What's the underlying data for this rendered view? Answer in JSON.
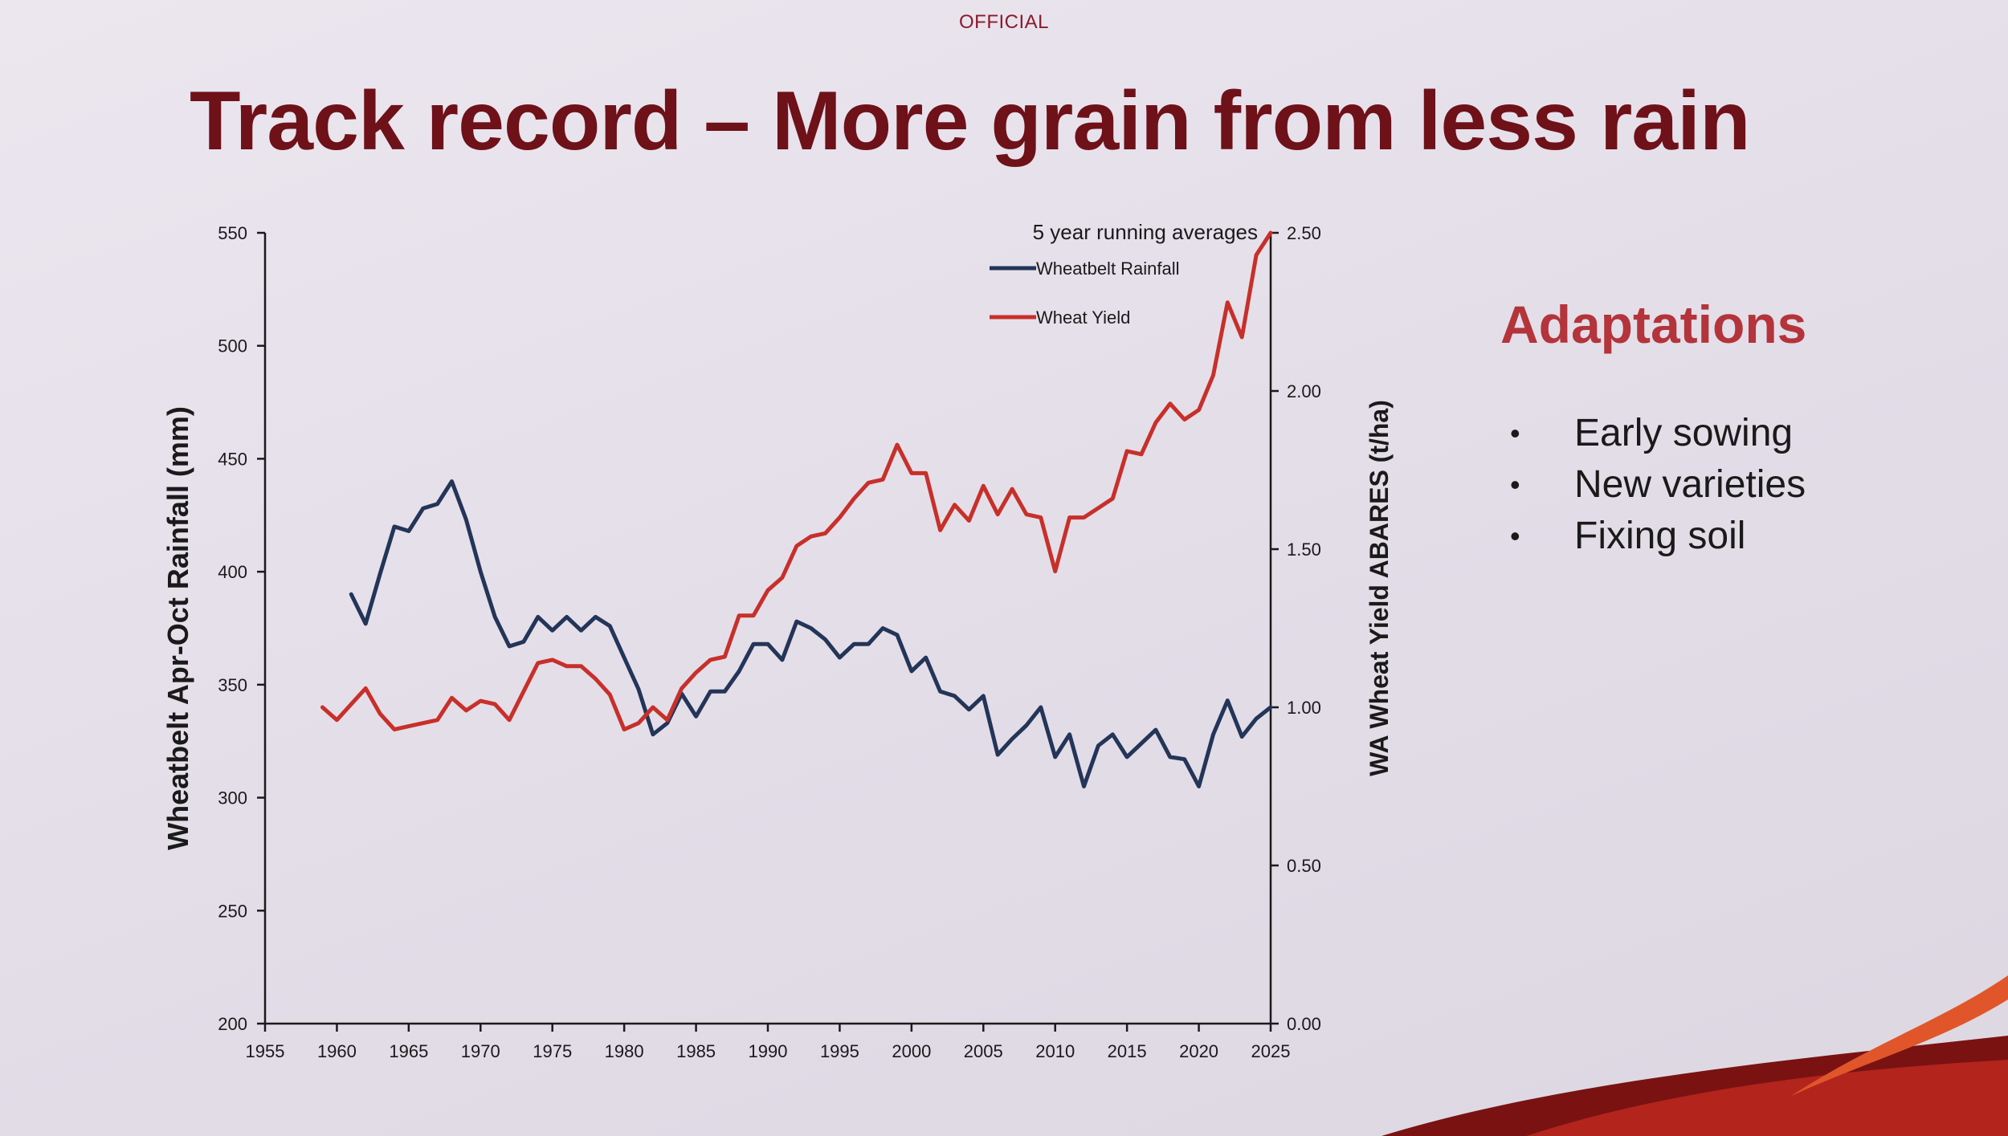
{
  "header": {
    "classification": "OFFICIAL",
    "title": "Track record – More grain from less rain"
  },
  "sidebar": {
    "title": "Adaptations",
    "bullets": [
      "Early sowing",
      "New varieties",
      "Fixing soil"
    ]
  },
  "colors": {
    "rainfall": "#233558",
    "yield": "#c7302a",
    "title": "#6e1119",
    "accent": "#b3343a"
  },
  "chart_data": {
    "type": "line",
    "title": "5 year running averages",
    "xlabel": "",
    "ylabel": "Wheatbelt Apr-Oct Rainfall (mm)",
    "y2label": "WA Wheat Yield ABARES (t/ha)",
    "xlim": [
      1955,
      2025
    ],
    "ylim": [
      200,
      550
    ],
    "y2lim": [
      0,
      2.5
    ],
    "xticks": [
      "1955",
      "1960",
      "1965",
      "1970",
      "1975",
      "1980",
      "1985",
      "1990",
      "1995",
      "2000",
      "2005",
      "2010",
      "2015",
      "2020",
      "2025"
    ],
    "yticks": [
      "200",
      "250",
      "300",
      "350",
      "400",
      "450",
      "500",
      "550"
    ],
    "y2ticks": [
      "0.00",
      "0.50",
      "1.00",
      "1.50",
      "2.00",
      "2.50"
    ],
    "legend_position": "top-right",
    "series": [
      {
        "name": "Wheatbelt Rainfall",
        "axis": "left",
        "x": [
          1961,
          1962,
          1963,
          1964,
          1965,
          1966,
          1967,
          1968,
          1969,
          1970,
          1971,
          1972,
          1973,
          1974,
          1975,
          1976,
          1977,
          1978,
          1979,
          1980,
          1981,
          1982,
          1983,
          1984,
          1985,
          1986,
          1987,
          1988,
          1989,
          1990,
          1991,
          1992,
          1993,
          1994,
          1995,
          1996,
          1997,
          1998,
          1999,
          2000,
          2001,
          2002,
          2003,
          2004,
          2005,
          2006,
          2007,
          2008,
          2009,
          2010,
          2011,
          2012,
          2013,
          2014,
          2015,
          2016,
          2017,
          2018,
          2019,
          2020,
          2021,
          2022,
          2023,
          2024,
          2025
        ],
        "values": [
          390,
          377,
          399,
          420,
          418,
          428,
          430,
          440,
          423,
          400,
          380,
          367,
          369,
          380,
          374,
          380,
          374,
          380,
          376,
          362,
          348,
          328,
          333,
          346,
          336,
          347,
          347,
          356,
          368,
          368,
          361,
          378,
          375,
          370,
          362,
          368,
          368,
          375,
          372,
          356,
          362,
          347,
          345,
          339,
          345,
          319,
          326,
          332,
          340,
          318,
          328,
          305,
          323,
          328,
          318,
          324,
          330,
          318,
          317,
          305,
          328,
          343,
          327,
          335,
          340
        ]
      },
      {
        "name": "Wheat Yield",
        "axis": "right",
        "x": [
          1959,
          1960,
          1961,
          1962,
          1963,
          1964,
          1965,
          1966,
          1967,
          1968,
          1969,
          1970,
          1971,
          1972,
          1973,
          1974,
          1975,
          1976,
          1977,
          1978,
          1979,
          1980,
          1981,
          1982,
          1983,
          1984,
          1985,
          1986,
          1987,
          1988,
          1989,
          1990,
          1991,
          1992,
          1993,
          1994,
          1995,
          1996,
          1997,
          1998,
          1999,
          2000,
          2001,
          2002,
          2003,
          2004,
          2005,
          2006,
          2007,
          2008,
          2009,
          2010,
          2011,
          2012,
          2013,
          2014,
          2015,
          2016,
          2017,
          2018,
          2019,
          2020,
          2021,
          2022,
          2023,
          2024,
          2025
        ],
        "values": [
          1.0,
          0.96,
          1.01,
          1.06,
          0.98,
          0.93,
          0.94,
          0.95,
          0.96,
          1.03,
          0.99,
          1.02,
          1.01,
          0.96,
          1.05,
          1.14,
          1.15,
          1.13,
          1.13,
          1.09,
          1.04,
          0.93,
          0.95,
          1.0,
          0.96,
          1.06,
          1.11,
          1.15,
          1.16,
          1.29,
          1.29,
          1.37,
          1.41,
          1.51,
          1.54,
          1.55,
          1.6,
          1.66,
          1.71,
          1.72,
          1.83,
          1.74,
          1.74,
          1.56,
          1.64,
          1.59,
          1.7,
          1.61,
          1.69,
          1.61,
          1.6,
          1.43,
          1.6,
          1.6,
          1.63,
          1.66,
          1.81,
          1.8,
          1.9,
          1.96,
          1.91,
          1.94,
          2.05,
          2.28,
          2.17,
          2.43,
          2.5
        ]
      }
    ]
  }
}
